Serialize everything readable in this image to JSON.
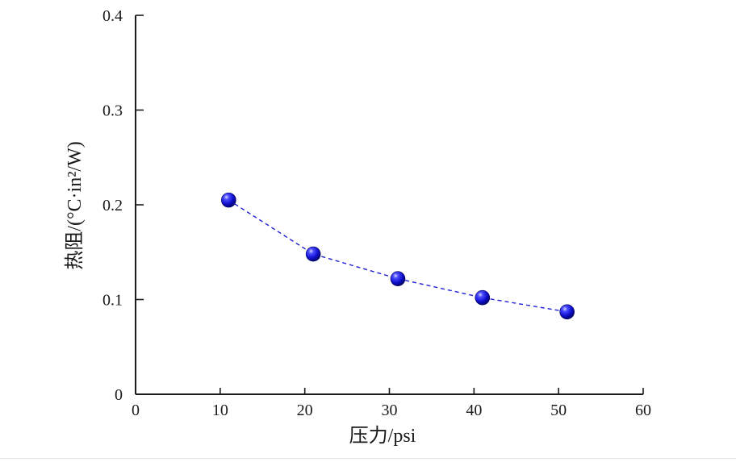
{
  "chart_data": {
    "type": "line",
    "xlabel": "压力/psi",
    "ylabel": "热阻/(°C·in²/W)",
    "xlim": [
      0,
      60
    ],
    "ylim": [
      0,
      0.4
    ],
    "xticks": [
      0,
      10,
      20,
      30,
      40,
      50,
      60
    ],
    "yticks": [
      0,
      0.1,
      0.2,
      0.3,
      0.4
    ],
    "xtick_labels": [
      "0",
      "10",
      "20",
      "30",
      "40",
      "50",
      "60"
    ],
    "ytick_labels": [
      "0",
      "0.1",
      "0.2",
      "0.3",
      "0.4"
    ],
    "grid": false,
    "series": [
      {
        "x": [
          11,
          21,
          31,
          41,
          51
        ],
        "y": [
          0.205,
          0.148,
          0.122,
          0.102,
          0.087
        ],
        "color": "#1f1fd6",
        "line_style": "dashed",
        "marker": "sphere"
      }
    ]
  }
}
